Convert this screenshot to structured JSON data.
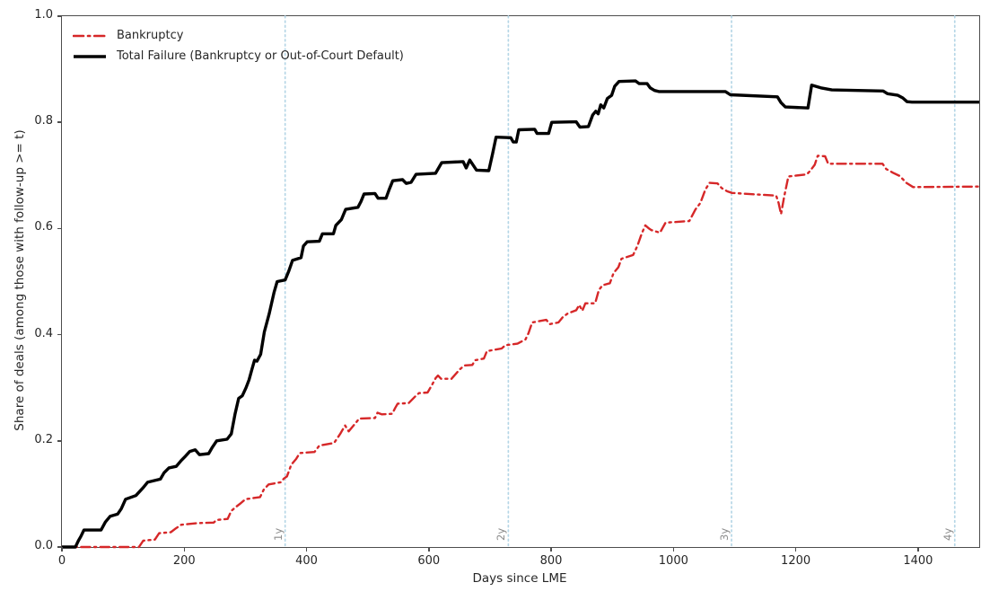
{
  "chart_data": {
    "type": "line",
    "title": "",
    "xlabel": "Days since LME",
    "ylabel": "Share of deals (among those with follow-up >= t)",
    "xlim": [
      0,
      1500
    ],
    "ylim": [
      0,
      1
    ],
    "grid": false,
    "legend_position": "upper left",
    "x_ticks": [
      0,
      200,
      400,
      600,
      800,
      1000,
      1200,
      1400
    ],
    "x_tick_labels": [
      "0",
      "200",
      "400",
      "600",
      "800",
      "1000",
      "1200",
      "1400"
    ],
    "y_ticks": [
      0.0,
      0.2,
      0.4,
      0.6,
      0.8,
      1.0
    ],
    "y_tick_labels": [
      "0.0",
      "0.2",
      "0.4",
      "0.6",
      "0.8",
      "1.0"
    ],
    "vline_color": "#b5d6e6",
    "vline_label_color": "#8c8c8c",
    "vlines": [
      {
        "x": 365,
        "label": "1y"
      },
      {
        "x": 730,
        "label": "2y"
      },
      {
        "x": 1095,
        "label": "3y"
      },
      {
        "x": 1460,
        "label": "4y"
      }
    ],
    "series": [
      {
        "name": "Bankruptcy",
        "color": "#d62728",
        "style": "dashdot",
        "width": 2.4,
        "points": [
          [
            0,
            0
          ],
          [
            126,
            0
          ],
          [
            133,
            0.012
          ],
          [
            152,
            0.014
          ],
          [
            159,
            0.026
          ],
          [
            178,
            0.028
          ],
          [
            185,
            0.034
          ],
          [
            195,
            0.042
          ],
          [
            222,
            0.045
          ],
          [
            248,
            0.046
          ],
          [
            253,
            0.051
          ],
          [
            271,
            0.053
          ],
          [
            277,
            0.068
          ],
          [
            285,
            0.076
          ],
          [
            292,
            0.082
          ],
          [
            300,
            0.09
          ],
          [
            324,
            0.094
          ],
          [
            330,
            0.108
          ],
          [
            338,
            0.118
          ],
          [
            358,
            0.122
          ],
          [
            363,
            0.129
          ],
          [
            368,
            0.133
          ],
          [
            375,
            0.155
          ],
          [
            383,
            0.166
          ],
          [
            389,
            0.177
          ],
          [
            413,
            0.179
          ],
          [
            421,
            0.191
          ],
          [
            445,
            0.196
          ],
          [
            455,
            0.213
          ],
          [
            463,
            0.229
          ],
          [
            469,
            0.218
          ],
          [
            480,
            0.233
          ],
          [
            486,
            0.242
          ],
          [
            512,
            0.243
          ],
          [
            516,
            0.253
          ],
          [
            523,
            0.25
          ],
          [
            540,
            0.251
          ],
          [
            545,
            0.262
          ],
          [
            549,
            0.27
          ],
          [
            567,
            0.271
          ],
          [
            578,
            0.284
          ],
          [
            584,
            0.29
          ],
          [
            598,
            0.291
          ],
          [
            605,
            0.305
          ],
          [
            611,
            0.318
          ],
          [
            615,
            0.323
          ],
          [
            620,
            0.317
          ],
          [
            637,
            0.317
          ],
          [
            651,
            0.335
          ],
          [
            658,
            0.342
          ],
          [
            671,
            0.343
          ],
          [
            676,
            0.352
          ],
          [
            690,
            0.355
          ],
          [
            695,
            0.369
          ],
          [
            719,
            0.374
          ],
          [
            725,
            0.38
          ],
          [
            745,
            0.383
          ],
          [
            758,
            0.391
          ],
          [
            763,
            0.403
          ],
          [
            769,
            0.423
          ],
          [
            792,
            0.428
          ],
          [
            798,
            0.42
          ],
          [
            812,
            0.423
          ],
          [
            819,
            0.433
          ],
          [
            827,
            0.44
          ],
          [
            841,
            0.446
          ],
          [
            846,
            0.456
          ],
          [
            851,
            0.445
          ],
          [
            856,
            0.459
          ],
          [
            872,
            0.459
          ],
          [
            878,
            0.484
          ],
          [
            884,
            0.493
          ],
          [
            896,
            0.497
          ],
          [
            902,
            0.516
          ],
          [
            910,
            0.527
          ],
          [
            915,
            0.543
          ],
          [
            934,
            0.55
          ],
          [
            941,
            0.567
          ],
          [
            948,
            0.59
          ],
          [
            954,
            0.606
          ],
          [
            960,
            0.6
          ],
          [
            964,
            0.597
          ],
          [
            978,
            0.592
          ],
          [
            987,
            0.611
          ],
          [
            1026,
            0.614
          ],
          [
            1036,
            0.636
          ],
          [
            1044,
            0.648
          ],
          [
            1052,
            0.673
          ],
          [
            1059,
            0.686
          ],
          [
            1072,
            0.685
          ],
          [
            1079,
            0.676
          ],
          [
            1088,
            0.67
          ],
          [
            1096,
            0.667
          ],
          [
            1168,
            0.662
          ],
          [
            1172,
            0.648
          ],
          [
            1176,
            0.627
          ],
          [
            1181,
            0.66
          ],
          [
            1188,
            0.698
          ],
          [
            1218,
            0.702
          ],
          [
            1223,
            0.708
          ],
          [
            1231,
            0.72
          ],
          [
            1236,
            0.737
          ],
          [
            1248,
            0.736
          ],
          [
            1253,
            0.722
          ],
          [
            1342,
            0.722
          ],
          [
            1348,
            0.712
          ],
          [
            1359,
            0.705
          ],
          [
            1370,
            0.699
          ],
          [
            1381,
            0.686
          ],
          [
            1392,
            0.678
          ],
          [
            1500,
            0.679
          ]
        ]
      },
      {
        "name": "Total Failure (Bankruptcy or Out-of-Court Default)",
        "color": "#000000",
        "style": "solid",
        "width": 3.4,
        "points": [
          [
            0,
            0
          ],
          [
            22,
            0
          ],
          [
            27,
            0.012
          ],
          [
            31,
            0.02
          ],
          [
            36,
            0.032
          ],
          [
            64,
            0.032
          ],
          [
            71,
            0.047
          ],
          [
            79,
            0.058
          ],
          [
            91,
            0.062
          ],
          [
            97,
            0.072
          ],
          [
            104,
            0.09
          ],
          [
            121,
            0.097
          ],
          [
            133,
            0.112
          ],
          [
            140,
            0.122
          ],
          [
            161,
            0.128
          ],
          [
            167,
            0.14
          ],
          [
            175,
            0.149
          ],
          [
            187,
            0.152
          ],
          [
            195,
            0.163
          ],
          [
            202,
            0.171
          ],
          [
            209,
            0.18
          ],
          [
            218,
            0.183
          ],
          [
            225,
            0.174
          ],
          [
            240,
            0.176
          ],
          [
            246,
            0.188
          ],
          [
            253,
            0.2
          ],
          [
            270,
            0.203
          ],
          [
            277,
            0.213
          ],
          [
            283,
            0.25
          ],
          [
            289,
            0.28
          ],
          [
            295,
            0.285
          ],
          [
            301,
            0.3
          ],
          [
            306,
            0.315
          ],
          [
            311,
            0.336
          ],
          [
            315,
            0.352
          ],
          [
            319,
            0.35
          ],
          [
            325,
            0.363
          ],
          [
            331,
            0.405
          ],
          [
            339,
            0.44
          ],
          [
            347,
            0.48
          ],
          [
            352,
            0.5
          ],
          [
            365,
            0.503
          ],
          [
            371,
            0.52
          ],
          [
            377,
            0.54
          ],
          [
            391,
            0.545
          ],
          [
            395,
            0.567
          ],
          [
            401,
            0.575
          ],
          [
            421,
            0.576
          ],
          [
            426,
            0.59
          ],
          [
            444,
            0.59
          ],
          [
            448,
            0.606
          ],
          [
            457,
            0.617
          ],
          [
            464,
            0.636
          ],
          [
            484,
            0.64
          ],
          [
            489,
            0.651
          ],
          [
            494,
            0.665
          ],
          [
            512,
            0.666
          ],
          [
            517,
            0.657
          ],
          [
            530,
            0.657
          ],
          [
            535,
            0.673
          ],
          [
            541,
            0.69
          ],
          [
            557,
            0.692
          ],
          [
            563,
            0.685
          ],
          [
            571,
            0.687
          ],
          [
            579,
            0.702
          ],
          [
            611,
            0.704
          ],
          [
            621,
            0.724
          ],
          [
            656,
            0.726
          ],
          [
            661,
            0.714
          ],
          [
            667,
            0.729
          ],
          [
            678,
            0.71
          ],
          [
            698,
            0.709
          ],
          [
            704,
            0.74
          ],
          [
            710,
            0.772
          ],
          [
            734,
            0.771
          ],
          [
            738,
            0.763
          ],
          [
            743,
            0.763
          ],
          [
            747,
            0.786
          ],
          [
            773,
            0.787
          ],
          [
            777,
            0.779
          ],
          [
            796,
            0.779
          ],
          [
            801,
            0.8
          ],
          [
            841,
            0.801
          ],
          [
            847,
            0.791
          ],
          [
            861,
            0.792
          ],
          [
            868,
            0.814
          ],
          [
            873,
            0.821
          ],
          [
            877,
            0.816
          ],
          [
            881,
            0.833
          ],
          [
            886,
            0.827
          ],
          [
            892,
            0.845
          ],
          [
            899,
            0.851
          ],
          [
            904,
            0.868
          ],
          [
            911,
            0.877
          ],
          [
            938,
            0.878
          ],
          [
            944,
            0.873
          ],
          [
            957,
            0.873
          ],
          [
            962,
            0.865
          ],
          [
            969,
            0.86
          ],
          [
            976,
            0.858
          ],
          [
            1085,
            0.858
          ],
          [
            1093,
            0.852
          ],
          [
            1170,
            0.848
          ],
          [
            1176,
            0.837
          ],
          [
            1183,
            0.829
          ],
          [
            1220,
            0.827
          ],
          [
            1226,
            0.87
          ],
          [
            1241,
            0.865
          ],
          [
            1259,
            0.861
          ],
          [
            1343,
            0.859
          ],
          [
            1350,
            0.854
          ],
          [
            1367,
            0.851
          ],
          [
            1375,
            0.846
          ],
          [
            1382,
            0.839
          ],
          [
            1390,
            0.838
          ],
          [
            1500,
            0.838
          ]
        ]
      }
    ]
  }
}
